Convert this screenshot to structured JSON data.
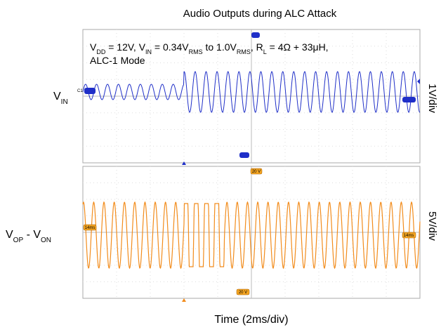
{
  "title": "Audio Outputs during ALC Attack",
  "conditions": [
    "V",
    "DD",
    " = 12V, V",
    "IN",
    " = 0.34V",
    "RMS",
    " to 1.0V",
    "RMS",
    ", R",
    "L",
    " = 4Ω + 33μH,"
  ],
  "mode": "ALC-1 Mode",
  "top_panel": {
    "label": [
      "V",
      "IN"
    ],
    "scale": "1V/div",
    "channel_tag": "C1"
  },
  "bottom_panel": {
    "label": [
      "V",
      "OP",
      "  -  V",
      "ON"
    ],
    "scale": "5V/div",
    "top_tag": "20 V",
    "bottom_tag": "20 V",
    "left_tag": "14ms",
    "right_tag": "14ms"
  },
  "x_label": "Time (2ms/div)"
}
